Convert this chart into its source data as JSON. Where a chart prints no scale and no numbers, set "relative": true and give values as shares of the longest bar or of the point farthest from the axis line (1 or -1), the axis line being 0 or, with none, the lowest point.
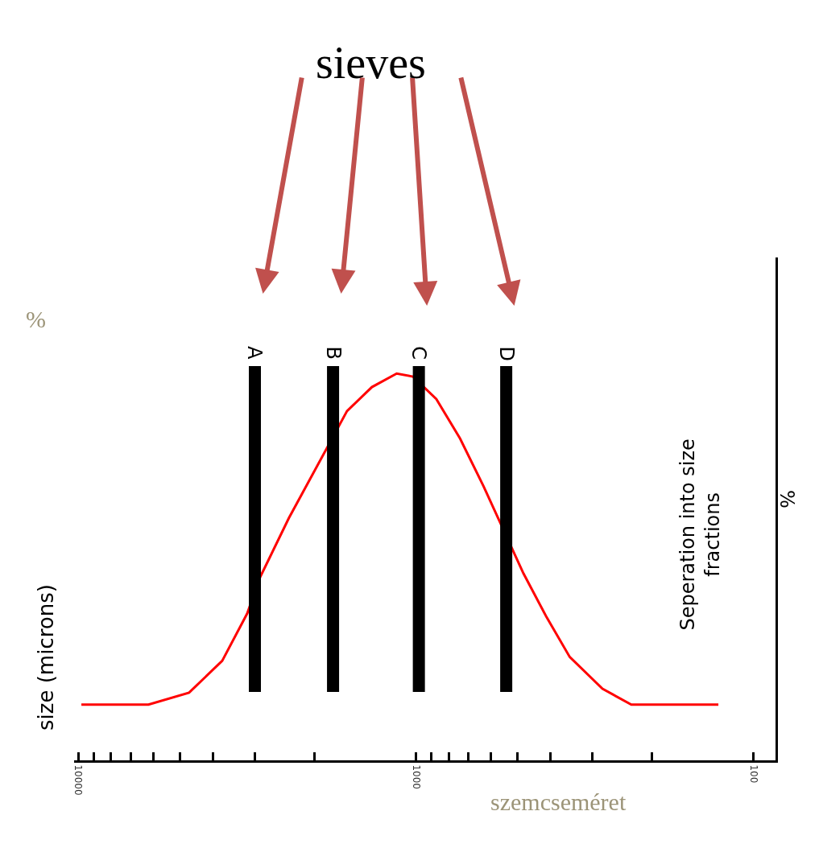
{
  "chart_data": {
    "type": "line",
    "title": "sieves",
    "ylabel": "%",
    "relative": true,
    "log": "x",
    "x": [
      9800,
      6200,
      4700,
      3750,
      3160,
      2900,
      2380,
      1600,
      1350,
      1140,
      1020,
      870,
      740,
      630,
      480,
      410,
      350,
      280,
      230,
      127
    ],
    "series": [
      {
        "color": "#ff0000",
        "values": [
          0.144,
          0.144,
          0.175,
          0.257,
          0.38,
          0.472,
          0.626,
          0.903,
          0.965,
          1.0,
          0.992,
          0.934,
          0.832,
          0.708,
          0.483,
          0.37,
          0.267,
          0.185,
          0.144,
          0.144
        ]
      }
    ],
    "xlim": [
      10300,
      86
    ],
    "xticks": [
      10000,
      {
        "value": 9000,
        "label": null
      },
      {
        "value": 8000,
        "label": null
      },
      {
        "value": 7000,
        "label": null
      },
      {
        "value": 6000,
        "label": null
      },
      {
        "value": 5000,
        "label": null
      },
      {
        "value": 4000,
        "label": null
      },
      {
        "value": 3000,
        "label": null
      },
      {
        "value": 2000,
        "label": null
      },
      1000,
      {
        "value": 900,
        "label": null
      },
      {
        "value": 800,
        "label": null
      },
      {
        "value": 700,
        "label": null
      },
      {
        "value": 600,
        "label": null
      },
      {
        "value": 500,
        "label": null
      },
      {
        "value": 400,
        "label": null
      },
      {
        "value": 300,
        "label": null
      },
      {
        "value": 200,
        "label": null
      },
      100
    ],
    "ref_lines": [
      {
        "axis": "x",
        "value": 3000,
        "label": "A",
        "color": "#000000"
      },
      {
        "axis": "x",
        "value": 1760,
        "label": "B",
        "color": "#000000"
      },
      {
        "axis": "x",
        "value": 980,
        "label": "C",
        "color": "#000000"
      },
      {
        "axis": "x",
        "value": 540,
        "label": "D",
        "color": "#000000"
      }
    ],
    "annotations": [
      "size (microns)",
      "Seperation into size fractions",
      "%",
      "szemcseméret"
    ],
    "marker": "none",
    "line_style": "solid"
  }
}
